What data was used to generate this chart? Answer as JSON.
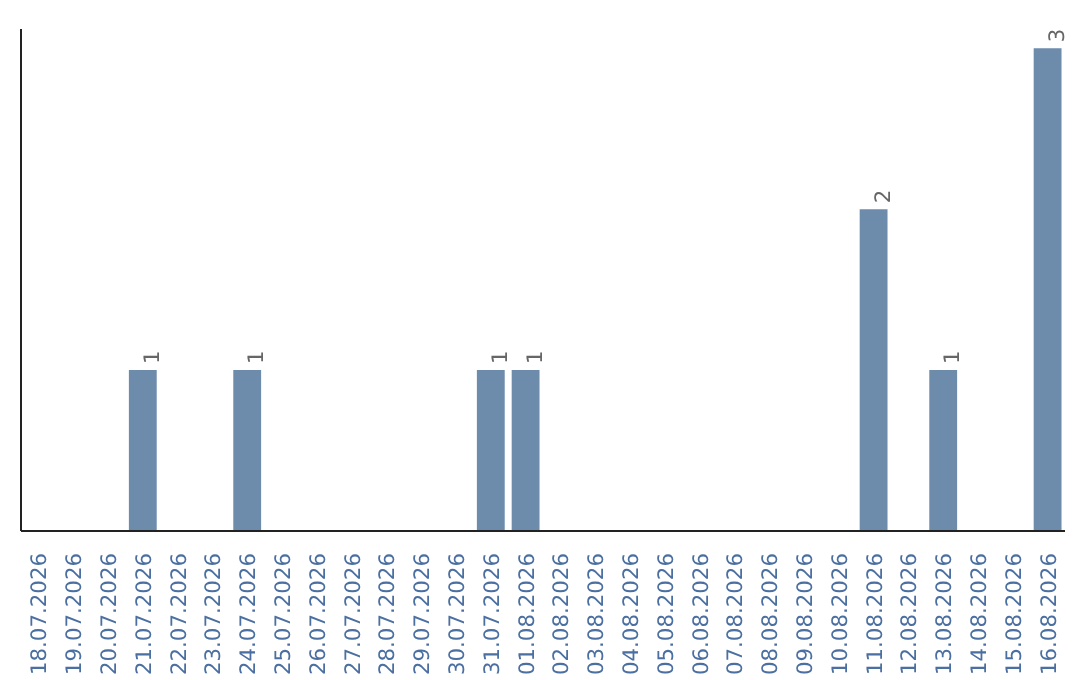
{
  "chart_data": {
    "type": "bar",
    "categories": [
      "18.07.2026",
      "19.07.2026",
      "20.07.2026",
      "21.07.2026",
      "22.07.2026",
      "23.07.2026",
      "24.07.2026",
      "25.07.2026",
      "26.07.2026",
      "27.07.2026",
      "28.07.2026",
      "29.07.2026",
      "30.07.2026",
      "31.07.2026",
      "01.08.2026",
      "02.08.2026",
      "03.08.2026",
      "04.08.2026",
      "05.08.2026",
      "06.08.2026",
      "07.08.2026",
      "08.08.2026",
      "09.08.2026",
      "10.08.2026",
      "11.08.2026",
      "12.08.2026",
      "13.08.2026",
      "14.08.2026",
      "15.08.2026",
      "16.08.2026"
    ],
    "values": [
      0,
      0,
      0,
      1,
      0,
      0,
      1,
      0,
      0,
      0,
      0,
      0,
      0,
      1,
      1,
      0,
      0,
      0,
      0,
      0,
      0,
      0,
      0,
      0,
      2,
      0,
      1,
      0,
      0,
      3
    ],
    "value_labels": [
      null,
      null,
      null,
      "1",
      null,
      null,
      "1",
      null,
      null,
      null,
      null,
      null,
      null,
      "1",
      "1",
      null,
      null,
      null,
      null,
      null,
      null,
      null,
      null,
      null,
      "2",
      null,
      "1",
      null,
      null,
      "3"
    ],
    "color": "#6d8cab",
    "ylim": [
      0,
      3.12
    ],
    "tick_labels": "x",
    "grid": false
  }
}
